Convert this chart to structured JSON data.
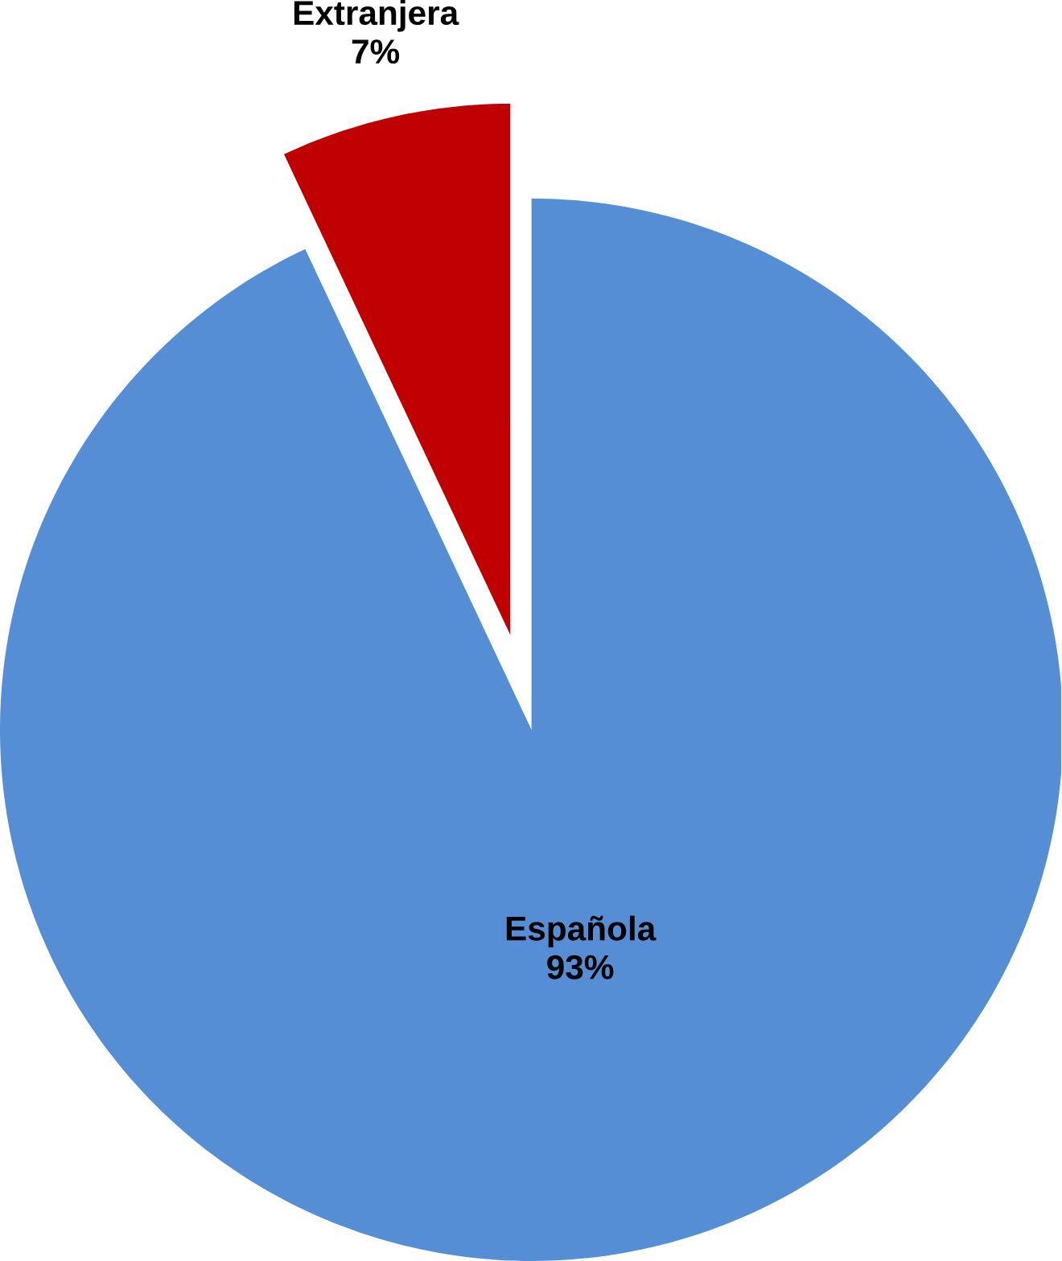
{
  "chart_data": {
    "type": "pie",
    "categories": [
      "Española",
      "Extranjera"
    ],
    "values": [
      93,
      7
    ],
    "value_labels": [
      "93%",
      "7%"
    ],
    "colors": [
      "#558ed5",
      "#c00000"
    ]
  }
}
